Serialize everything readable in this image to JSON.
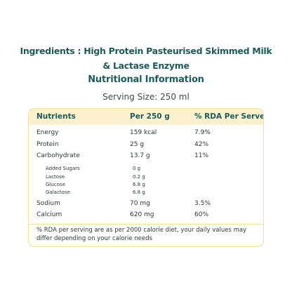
{
  "ingredients": {
    "line1": "Ingredients : High Protein Pasteurised Skimmed Milk",
    "line2": "& Lactase Enzyme"
  },
  "nutrition_title": "Nutritional Information",
  "serving_size": "Serving Size: 250 ml",
  "table": {
    "headers": [
      "Nutrients",
      "Per 250 g",
      "% RDA Per Serve"
    ],
    "rows": [
      {
        "name": "Energy",
        "amount": "159 kcal",
        "rda": "7.9%"
      },
      {
        "name": "Protein",
        "amount": "25 g",
        "rda": "42%"
      },
      {
        "name": "Carbohydrate",
        "amount": "13.7 g",
        "rda": "11%"
      }
    ],
    "subrows": [
      {
        "name": "Added Sugars",
        "amount": "0 g"
      },
      {
        "name": "Lactose",
        "amount": "0.2 g"
      },
      {
        "name": "Glucose",
        "amount": "6.8 g"
      },
      {
        "name": "Galactose",
        "amount": "6.8 g"
      }
    ],
    "rows_bottom": [
      {
        "name": "Sodium",
        "amount": "70 mg",
        "rda": "3.5%"
      },
      {
        "name": "Calcium",
        "amount": "620 mg",
        "rda": "60%"
      }
    ],
    "footnote": "% RDA per serving are as per 2000 calorie diet, your daily values may differ depending on your calorie needs"
  },
  "colors": {
    "heading": "#1f5a58",
    "header_fill": "#fbf1cf",
    "border": "#f0dfa9",
    "text": "#2f3938"
  }
}
